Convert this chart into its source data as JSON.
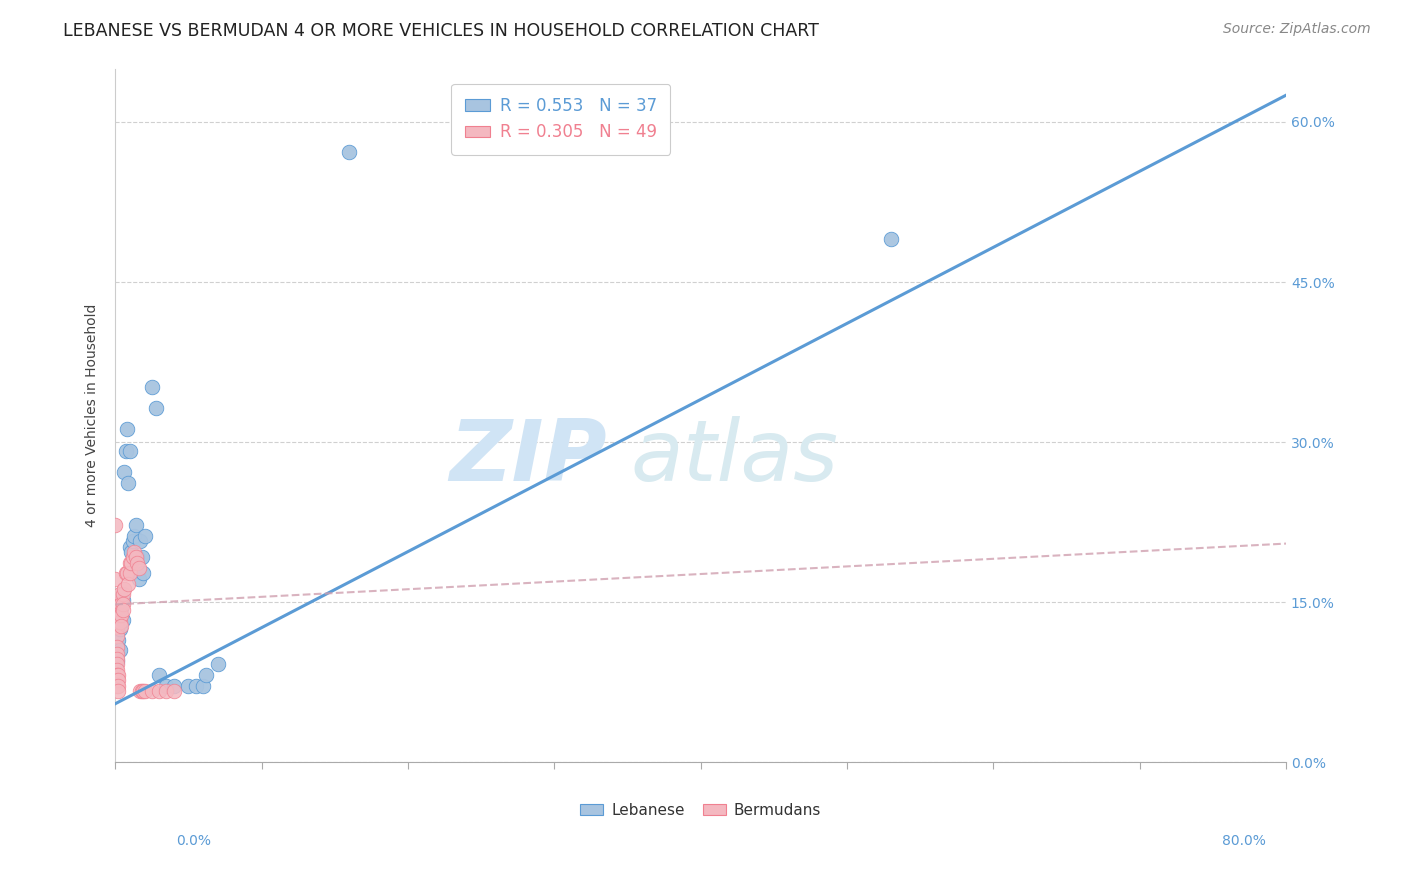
{
  "title": "LEBANESE VS BERMUDAN 4 OR MORE VEHICLES IN HOUSEHOLD CORRELATION CHART",
  "source": "Source: ZipAtlas.com",
  "xlim": [
    0.0,
    0.8
  ],
  "ylim": [
    0.0,
    0.65
  ],
  "ylabel": "4 or more Vehicles in Household",
  "watermark_zip": "ZIP",
  "watermark_atlas": "atlas",
  "legend_line1": "R = 0.553   N = 37",
  "legend_line2": "R = 0.305   N = 49",
  "blue_scatter": [
    [
      0.001,
      0.095
    ],
    [
      0.002,
      0.115
    ],
    [
      0.002,
      0.135
    ],
    [
      0.003,
      0.125
    ],
    [
      0.003,
      0.105
    ],
    [
      0.004,
      0.145
    ],
    [
      0.004,
      0.138
    ],
    [
      0.005,
      0.133
    ],
    [
      0.005,
      0.152
    ],
    [
      0.006,
      0.272
    ],
    [
      0.007,
      0.292
    ],
    [
      0.008,
      0.312
    ],
    [
      0.009,
      0.262
    ],
    [
      0.01,
      0.292
    ],
    [
      0.01,
      0.202
    ],
    [
      0.011,
      0.197
    ],
    [
      0.012,
      0.207
    ],
    [
      0.013,
      0.212
    ],
    [
      0.014,
      0.222
    ],
    [
      0.015,
      0.192
    ],
    [
      0.016,
      0.172
    ],
    [
      0.017,
      0.207
    ],
    [
      0.018,
      0.192
    ],
    [
      0.019,
      0.177
    ],
    [
      0.02,
      0.212
    ],
    [
      0.025,
      0.352
    ],
    [
      0.028,
      0.332
    ],
    [
      0.03,
      0.082
    ],
    [
      0.035,
      0.072
    ],
    [
      0.04,
      0.072
    ],
    [
      0.05,
      0.072
    ],
    [
      0.055,
      0.072
    ],
    [
      0.06,
      0.072
    ],
    [
      0.062,
      0.082
    ],
    [
      0.07,
      0.092
    ],
    [
      0.53,
      0.49
    ],
    [
      0.16,
      0.572
    ]
  ],
  "pink_scatter": [
    [
      0.0,
      0.222
    ],
    [
      0.0,
      0.172
    ],
    [
      0.001,
      0.148
    ],
    [
      0.001,
      0.138
    ],
    [
      0.001,
      0.132
    ],
    [
      0.001,
      0.127
    ],
    [
      0.001,
      0.118
    ],
    [
      0.001,
      0.108
    ],
    [
      0.001,
      0.102
    ],
    [
      0.001,
      0.097
    ],
    [
      0.001,
      0.092
    ],
    [
      0.001,
      0.087
    ],
    [
      0.001,
      0.082
    ],
    [
      0.001,
      0.077
    ],
    [
      0.001,
      0.072
    ],
    [
      0.002,
      0.082
    ],
    [
      0.002,
      0.077
    ],
    [
      0.002,
      0.072
    ],
    [
      0.002,
      0.067
    ],
    [
      0.003,
      0.158
    ],
    [
      0.003,
      0.143
    ],
    [
      0.003,
      0.138
    ],
    [
      0.003,
      0.132
    ],
    [
      0.004,
      0.148
    ],
    [
      0.004,
      0.138
    ],
    [
      0.004,
      0.128
    ],
    [
      0.005,
      0.158
    ],
    [
      0.005,
      0.148
    ],
    [
      0.005,
      0.143
    ],
    [
      0.006,
      0.162
    ],
    [
      0.007,
      0.177
    ],
    [
      0.008,
      0.177
    ],
    [
      0.009,
      0.167
    ],
    [
      0.01,
      0.187
    ],
    [
      0.01,
      0.177
    ],
    [
      0.011,
      0.187
    ],
    [
      0.012,
      0.192
    ],
    [
      0.013,
      0.197
    ],
    [
      0.014,
      0.192
    ],
    [
      0.015,
      0.187
    ],
    [
      0.016,
      0.182
    ],
    [
      0.017,
      0.067
    ],
    [
      0.018,
      0.067
    ],
    [
      0.019,
      0.067
    ],
    [
      0.02,
      0.067
    ],
    [
      0.025,
      0.067
    ],
    [
      0.03,
      0.067
    ],
    [
      0.035,
      0.067
    ],
    [
      0.04,
      0.067
    ]
  ],
  "blue_line_x": [
    0.0,
    0.8
  ],
  "blue_line_y": [
    0.055,
    0.625
  ],
  "pink_line_x": [
    0.0,
    0.8
  ],
  "pink_line_y": [
    0.148,
    0.205
  ],
  "blue_color": "#5b9bd5",
  "pink_color": "#f08090",
  "blue_fill": "#a8c4e0",
  "pink_fill": "#f4b8c0",
  "grid_color": "#d0d0d0",
  "background_color": "#ffffff",
  "title_fontsize": 12.5,
  "axis_label_fontsize": 10,
  "tick_fontsize": 10,
  "source_fontsize": 10
}
